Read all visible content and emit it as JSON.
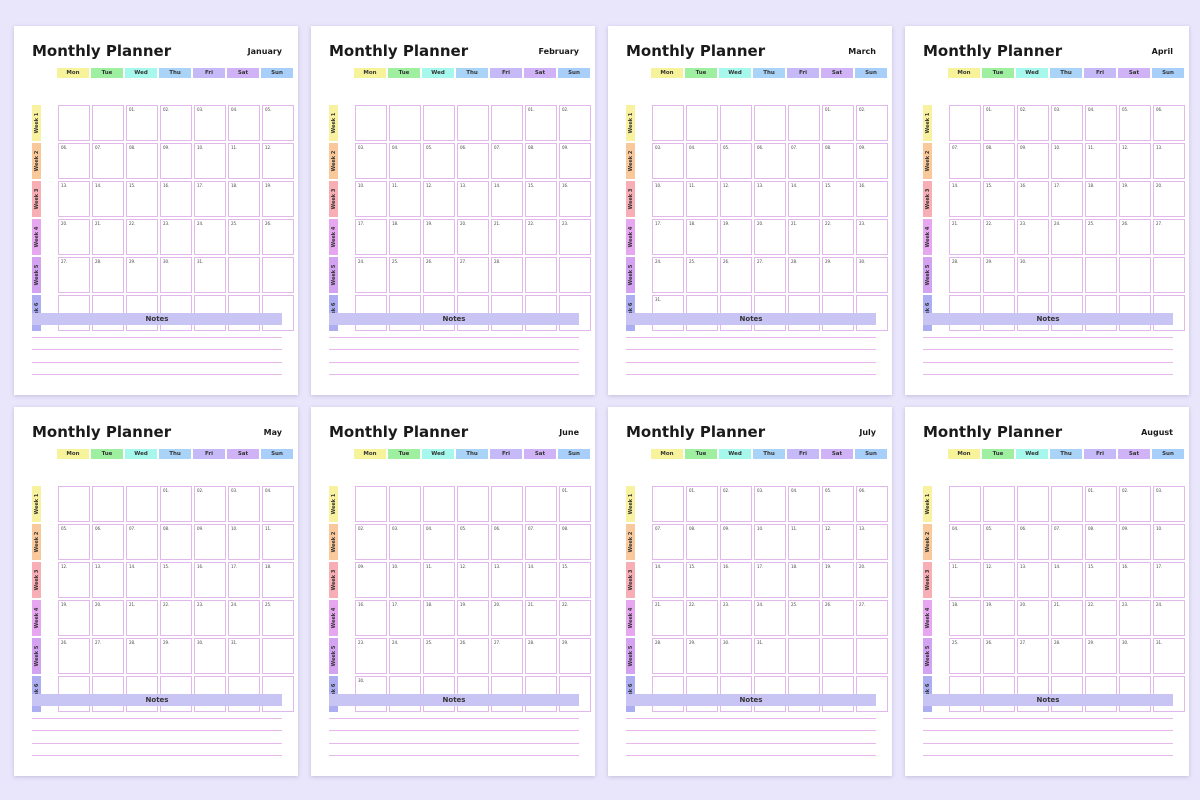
{
  "title": "Monthly Planner",
  "notes_label": "Notes",
  "days": [
    "Mon",
    "Tue",
    "Wed",
    "Thu",
    "Fri",
    "Sat",
    "Sun"
  ],
  "day_colors": [
    "#f7f39a",
    "#9ef0a0",
    "#a6f7ec",
    "#a9d4f7",
    "#c6b9f7",
    "#d0b3f6",
    "#a7cff9"
  ],
  "weeks": [
    "Week 1",
    "Week 2",
    "Week 3",
    "Week 4",
    "Week 5",
    "Week 6"
  ],
  "week_colors": [
    "#f8f1a0",
    "#f9c99c",
    "#f8aeb5",
    "#e7a6f0",
    "#d3a3f2",
    "#adaef2"
  ],
  "months": [
    {
      "name": "January",
      "offset": 2,
      "days": 31
    },
    {
      "name": "February",
      "offset": 5,
      "days": 28
    },
    {
      "name": "March",
      "offset": 5,
      "days": 31
    },
    {
      "name": "April",
      "offset": 1,
      "days": 30
    },
    {
      "name": "May",
      "offset": 3,
      "days": 31
    },
    {
      "name": "June",
      "offset": 6,
      "days": 30
    },
    {
      "name": "July",
      "offset": 1,
      "days": 31
    },
    {
      "name": "August",
      "offset": 4,
      "days": 31
    }
  ]
}
